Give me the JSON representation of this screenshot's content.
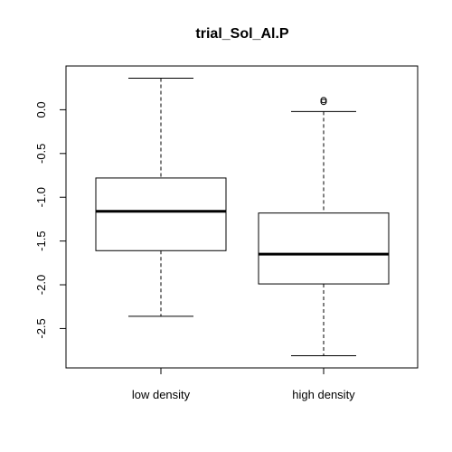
{
  "chart_data": {
    "type": "boxplot",
    "title": "trial_Sol_Al.P",
    "xlabel": "",
    "ylabel": "",
    "ylim": [
      -2.95,
      0.5
    ],
    "y_ticks": [
      0.0,
      -0.5,
      -1.0,
      -1.5,
      -2.0,
      -2.5
    ],
    "y_tick_labels": [
      "0.0",
      "-0.5",
      "-1.0",
      "-1.5",
      "-2.0",
      "-2.5"
    ],
    "categories": [
      "low density",
      "high density"
    ],
    "boxes": [
      {
        "category": "low density",
        "whisker_low": -2.36,
        "q1": -1.61,
        "median": -1.16,
        "q3": -0.78,
        "whisker_high": 0.36,
        "outliers": []
      },
      {
        "category": "high density",
        "whisker_low": -2.81,
        "q1": -1.99,
        "median": -1.65,
        "q3": -1.18,
        "whisker_high": -0.02,
        "outliers": [
          0.09,
          0.11
        ]
      }
    ],
    "grid": false,
    "legend": "none"
  }
}
